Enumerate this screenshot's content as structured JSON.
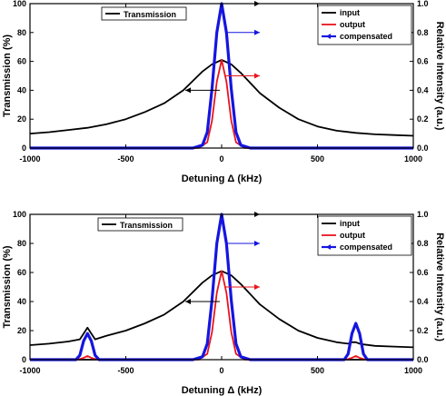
{
  "chart_data": [
    {
      "type": "line",
      "xlabel": "Detuning Δ (kHz)",
      "ylabel_left": "Transmission (%)",
      "ylabel_right": "Relative Intensity (a.u.)",
      "xlim": [
        -1000,
        1000
      ],
      "ylim_left": [
        0,
        100
      ],
      "ylim_right": [
        0,
        1.0
      ],
      "x_ticks": [
        "-1000",
        "-500",
        "0",
        "500",
        "1000"
      ],
      "y_left_ticks": [
        "0",
        "20",
        "40",
        "60",
        "80",
        "100"
      ],
      "y_right_ticks": [
        "0.0",
        "0.2",
        "0.4",
        "0.6",
        "0.8",
        "1.0"
      ],
      "grid": false,
      "legend_left": {
        "placement": "top-left",
        "entries": [
          "Transmission"
        ]
      },
      "legend_right": {
        "placement": "top-right",
        "entries": [
          "input",
          "output",
          "compensated"
        ]
      },
      "series": [
        {
          "name": "Transmission",
          "axis": "left",
          "color": "#000000",
          "x": [
            -1000,
            -900,
            -800,
            -700,
            -600,
            -500,
            -400,
            -300,
            -200,
            -100,
            -50,
            0,
            50,
            100,
            200,
            300,
            400,
            500,
            600,
            700,
            800,
            900,
            1000
          ],
          "y": [
            10,
            11,
            12.5,
            14,
            16.5,
            20,
            25,
            31,
            40,
            53,
            58,
            61,
            58,
            52,
            38,
            28,
            20,
            15,
            12,
            10.5,
            9.5,
            9,
            8.5
          ]
        },
        {
          "name": "input",
          "axis": "right",
          "color": "#000000",
          "x": [
            -1000,
            -150,
            -100,
            -75,
            -50,
            -25,
            0,
            25,
            50,
            75,
            100,
            150,
            1000
          ],
          "y": [
            0,
            0,
            0.02,
            0.11,
            0.41,
            0.8,
            1.0,
            0.8,
            0.41,
            0.11,
            0.02,
            0,
            0
          ]
        },
        {
          "name": "output",
          "axis": "right",
          "color": "#e8141c",
          "x": [
            -1000,
            -120,
            -75,
            -50,
            -25,
            0,
            25,
            50,
            75,
            120,
            1000
          ],
          "y": [
            0,
            0,
            0.04,
            0.19,
            0.46,
            0.61,
            0.46,
            0.19,
            0.04,
            0,
            0
          ]
        },
        {
          "name": "compensated",
          "axis": "right",
          "color": "#1515e0",
          "x": [
            -1000,
            -150,
            -100,
            -75,
            -50,
            -25,
            0,
            25,
            50,
            75,
            100,
            150,
            1000
          ],
          "y": [
            0,
            0,
            0.02,
            0.11,
            0.41,
            0.8,
            1.0,
            0.8,
            0.41,
            0.11,
            0.02,
            0,
            0
          ]
        }
      ],
      "annotations": [
        {
          "kind": "arrow",
          "color": "#000000",
          "points_to": "right",
          "at": [
            0,
            100
          ]
        },
        {
          "kind": "arrow",
          "color": "#1515e0",
          "points_to": "right",
          "at": [
            0,
            80
          ]
        },
        {
          "kind": "arrow",
          "color": "#e8141c",
          "points_to": "right",
          "at": [
            0,
            50
          ]
        },
        {
          "kind": "arrow",
          "color": "#000000",
          "points_to": "left",
          "at": [
            0,
            40
          ]
        }
      ]
    },
    {
      "type": "line",
      "xlabel": "Detuning Δ (kHz)",
      "ylabel_left": "Transmission (%)",
      "ylabel_right": "Relative Intensity (a.u.)",
      "xlim": [
        -1000,
        1000
      ],
      "ylim_left": [
        0,
        100
      ],
      "ylim_right": [
        0,
        1.0
      ],
      "x_ticks": [
        "-1000",
        "-500",
        "0",
        "500",
        "1000"
      ],
      "y_left_ticks": [
        "0",
        "20",
        "40",
        "60",
        "80",
        "100"
      ],
      "y_right_ticks": [
        "0.0",
        "0.2",
        "0.4",
        "0.6",
        "0.8",
        "1.0"
      ],
      "grid": false,
      "legend_left": {
        "placement": "top-left",
        "entries": [
          "Transmission"
        ]
      },
      "legend_right": {
        "placement": "top-right",
        "entries": [
          "input",
          "output",
          "compensated"
        ]
      },
      "series": [
        {
          "name": "Transmission",
          "axis": "left",
          "color": "#000000",
          "x": [
            -1000,
            -900,
            -800,
            -740,
            -720,
            -700,
            -680,
            -660,
            -600,
            -500,
            -400,
            -300,
            -200,
            -100,
            -50,
            0,
            50,
            100,
            200,
            300,
            400,
            500,
            600,
            660,
            680,
            700,
            720,
            740,
            800,
            900,
            1000
          ],
          "y": [
            10,
            11,
            12.5,
            14,
            18,
            22,
            18,
            14,
            16.5,
            20,
            25,
            31,
            40,
            53,
            58,
            61,
            58,
            52,
            38,
            28,
            20,
            15,
            12,
            11,
            12,
            12,
            11,
            10.5,
            9.5,
            9,
            8.5
          ]
        },
        {
          "name": "input",
          "axis": "right",
          "color": "#000000",
          "x": [
            -1000,
            -150,
            -100,
            -75,
            -50,
            -25,
            0,
            25,
            50,
            75,
            100,
            150,
            1000
          ],
          "y": [
            0,
            0,
            0.02,
            0.11,
            0.41,
            0.8,
            1.0,
            0.8,
            0.41,
            0.11,
            0.02,
            0,
            0
          ]
        },
        {
          "name": "output",
          "axis": "right",
          "color": "#e8141c",
          "x": [
            -1000,
            -750,
            -725,
            -700,
            -675,
            -650,
            -120,
            -75,
            -50,
            -25,
            0,
            25,
            50,
            75,
            120,
            650,
            675,
            700,
            725,
            750,
            1000
          ],
          "y": [
            0,
            0,
            0.01,
            0.025,
            0.01,
            0,
            0,
            0.04,
            0.19,
            0.46,
            0.61,
            0.46,
            0.19,
            0.04,
            0,
            0,
            0.01,
            0.025,
            0.01,
            0,
            0
          ]
        },
        {
          "name": "compensated",
          "axis": "right",
          "color": "#1515e0",
          "x": [
            -1000,
            -760,
            -740,
            -720,
            -700,
            -680,
            -660,
            -640,
            -150,
            -100,
            -75,
            -50,
            -25,
            0,
            25,
            50,
            75,
            100,
            150,
            640,
            660,
            680,
            700,
            720,
            740,
            760,
            1000
          ],
          "y": [
            0,
            0,
            0.03,
            0.13,
            0.18,
            0.13,
            0.03,
            0,
            0,
            0.02,
            0.11,
            0.41,
            0.8,
            1.0,
            0.8,
            0.41,
            0.11,
            0.02,
            0,
            0,
            0.04,
            0.18,
            0.25,
            0.18,
            0.04,
            0,
            0
          ]
        }
      ],
      "annotations": [
        {
          "kind": "arrow",
          "color": "#000000",
          "points_to": "right",
          "at": [
            0,
            100
          ]
        },
        {
          "kind": "arrow",
          "color": "#1515e0",
          "points_to": "right",
          "at": [
            0,
            80
          ]
        },
        {
          "kind": "arrow",
          "color": "#e8141c",
          "points_to": "right",
          "at": [
            0,
            50
          ]
        },
        {
          "kind": "arrow",
          "color": "#000000",
          "points_to": "left",
          "at": [
            0,
            40
          ]
        }
      ]
    }
  ]
}
